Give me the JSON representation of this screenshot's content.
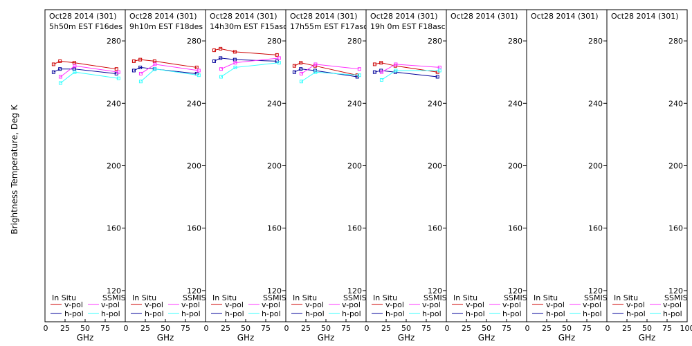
{
  "ylabel": "Brightness Temperature, Deg K",
  "xlabel": "GHz",
  "colors": {
    "insitu_v": "#cc0000",
    "insitu_h": "#000099",
    "ssmis_v": "#ff33ff",
    "ssmis_h": "#33ffff",
    "axis": "#000000"
  },
  "legend": {
    "insitu_label": "In Situ",
    "ssmis_label": "SSMIS",
    "vpol": "v-pol",
    "hpol": "h-pol"
  },
  "chart_data": {
    "type": "line",
    "ylim": [
      100,
      300
    ],
    "yticks": [
      120,
      160,
      200,
      240,
      280
    ],
    "xlim": [
      0,
      100
    ],
    "xticks": [
      "0",
      "25",
      "50",
      "75",
      "100"
    ],
    "panels": [
      {
        "date": "Oct28 2014 (301)",
        "time": "5h50m EST F16des",
        "insitu_v": [
          [
            10.7,
            265
          ],
          [
            18.7,
            267
          ],
          [
            36.5,
            266
          ],
          [
            89,
            262
          ]
        ],
        "insitu_h": [
          [
            10.7,
            260
          ],
          [
            18.7,
            262
          ],
          [
            36.5,
            262
          ],
          [
            89,
            259
          ]
        ],
        "ssmis_v": [
          [
            19.35,
            257
          ],
          [
            37,
            264
          ],
          [
            91.655,
            260
          ]
        ],
        "ssmis_h": [
          [
            19.35,
            253
          ],
          [
            37,
            260
          ],
          [
            91.655,
            256
          ]
        ]
      },
      {
        "date": "Oct28 2014 (301)",
        "time": "9h10m EST F18des",
        "insitu_v": [
          [
            10.7,
            267
          ],
          [
            18.7,
            268
          ],
          [
            36.5,
            267
          ],
          [
            89,
            263
          ]
        ],
        "insitu_h": [
          [
            10.7,
            261
          ],
          [
            18.7,
            263
          ],
          [
            36.5,
            262
          ],
          [
            89,
            259
          ]
        ],
        "ssmis_v": [
          [
            19.35,
            259
          ],
          [
            37,
            265
          ],
          [
            91.655,
            261
          ]
        ],
        "ssmis_h": [
          [
            19.35,
            254
          ],
          [
            37,
            262
          ],
          [
            91.655,
            258
          ]
        ]
      },
      {
        "date": "Oct28 2014 (301)",
        "time": "14h30m EST F15asc",
        "insitu_v": [
          [
            10.7,
            274
          ],
          [
            18.7,
            275
          ],
          [
            36.5,
            273
          ],
          [
            89,
            271
          ]
        ],
        "insitu_h": [
          [
            10.7,
            267
          ],
          [
            18.7,
            269
          ],
          [
            36.5,
            268
          ],
          [
            89,
            267
          ]
        ],
        "ssmis_v": [
          [
            19.35,
            262
          ],
          [
            37,
            266
          ],
          [
            91.655,
            269
          ]
        ],
        "ssmis_h": [
          [
            19.35,
            257
          ],
          [
            37,
            263
          ],
          [
            91.655,
            266
          ]
        ]
      },
      {
        "date": "Oct28 2014 (301)",
        "time": "17h55m EST F17asc",
        "insitu_v": [
          [
            10.7,
            264
          ],
          [
            18.7,
            266
          ],
          [
            36.5,
            264
          ],
          [
            89,
            258
          ]
        ],
        "insitu_h": [
          [
            10.7,
            260
          ],
          [
            18.7,
            262
          ],
          [
            36.5,
            261
          ],
          [
            89,
            257
          ]
        ],
        "ssmis_v": [
          [
            19.35,
            259
          ],
          [
            37,
            265
          ],
          [
            91.655,
            262
          ]
        ],
        "ssmis_h": [
          [
            19.35,
            254
          ],
          [
            37,
            260
          ],
          [
            91.655,
            258
          ]
        ]
      },
      {
        "date": "Oct28 2014 (301)",
        "time": "19h 0m EST F18asc",
        "insitu_v": [
          [
            10.7,
            265
          ],
          [
            18.7,
            266
          ],
          [
            36.5,
            264
          ],
          [
            89,
            260
          ]
        ],
        "insitu_h": [
          [
            10.7,
            260
          ],
          [
            18.7,
            261
          ],
          [
            36.5,
            260
          ],
          [
            89,
            257
          ]
        ],
        "ssmis_v": [
          [
            19.35,
            260
          ],
          [
            37,
            265
          ],
          [
            91.655,
            263
          ]
        ],
        "ssmis_h": [
          [
            19.35,
            255
          ],
          [
            37,
            261
          ],
          [
            91.655,
            261
          ]
        ]
      },
      {
        "date": "Oct28 2014 (301)",
        "time": "",
        "insitu_v": [],
        "insitu_h": [],
        "ssmis_v": [],
        "ssmis_h": []
      },
      {
        "date": "Oct28 2014 (301)",
        "time": "",
        "insitu_v": [],
        "insitu_h": [],
        "ssmis_v": [],
        "ssmis_h": []
      },
      {
        "date": "Oct28 2014 (301)",
        "time": "",
        "insitu_v": [],
        "insitu_h": [],
        "ssmis_v": [],
        "ssmis_h": []
      }
    ]
  }
}
